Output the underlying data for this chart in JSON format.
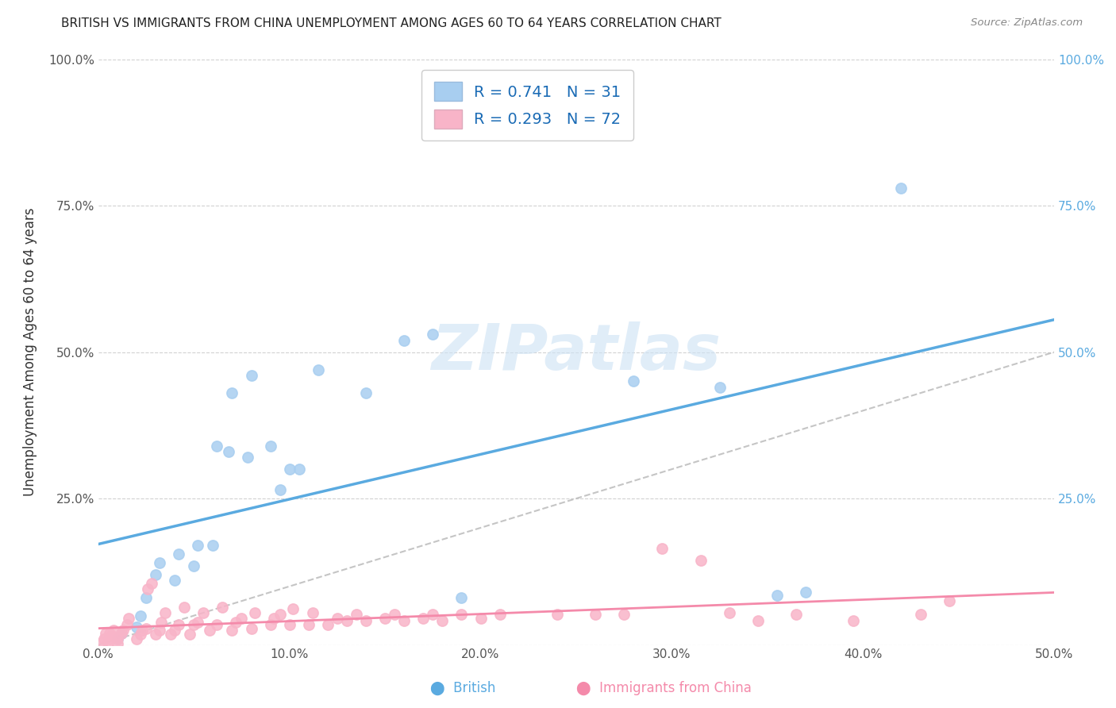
{
  "title": "BRITISH VS IMMIGRANTS FROM CHINA UNEMPLOYMENT AMONG AGES 60 TO 64 YEARS CORRELATION CHART",
  "source": "Source: ZipAtlas.com",
  "ylabel": "Unemployment Among Ages 60 to 64 years",
  "xlim": [
    0.0,
    50.0
  ],
  "ylim": [
    0.0,
    100.0
  ],
  "xticks": [
    0.0,
    10.0,
    20.0,
    30.0,
    40.0,
    50.0
  ],
  "yticks": [
    0.0,
    25.0,
    50.0,
    75.0,
    100.0
  ],
  "xticklabels": [
    "0.0%",
    "10.0%",
    "20.0%",
    "30.0%",
    "40.0%",
    "50.0%"
  ],
  "yticklabels_left": [
    "",
    "25.0%",
    "50.0%",
    "75.0%",
    "100.0%"
  ],
  "yticklabels_right": [
    "",
    "25.0%",
    "50.0%",
    "75.0%",
    "100.0%"
  ],
  "british_color": "#A8CEF0",
  "china_color": "#F8B4C8",
  "british_fill": "#A8CEF0",
  "china_fill": "#F8B4C8",
  "british_R": 0.741,
  "british_N": 31,
  "china_R": 0.293,
  "china_N": 72,
  "legend_color": "#1A6BB5",
  "watermark_color": "#D0E4F5",
  "diagonal_color": "#BBBBBB",
  "british_line_color": "#5AAAE0",
  "china_line_color": "#F48AAA",
  "right_tick_color": "#5AAAE0",
  "british_scatter": [
    [
      1.0,
      1.0
    ],
    [
      1.2,
      2.0
    ],
    [
      2.0,
      3.0
    ],
    [
      2.2,
      5.0
    ],
    [
      2.5,
      8.0
    ],
    [
      3.0,
      12.0
    ],
    [
      3.2,
      14.0
    ],
    [
      4.0,
      11.0
    ],
    [
      4.2,
      15.5
    ],
    [
      5.0,
      13.5
    ],
    [
      5.2,
      17.0
    ],
    [
      6.0,
      17.0
    ],
    [
      6.2,
      34.0
    ],
    [
      6.8,
      33.0
    ],
    [
      7.0,
      43.0
    ],
    [
      7.8,
      32.0
    ],
    [
      8.0,
      46.0
    ],
    [
      9.0,
      34.0
    ],
    [
      9.5,
      26.5
    ],
    [
      10.0,
      30.0
    ],
    [
      10.5,
      30.0
    ],
    [
      11.5,
      47.0
    ],
    [
      14.0,
      43.0
    ],
    [
      16.0,
      52.0
    ],
    [
      17.5,
      53.0
    ],
    [
      19.0,
      8.0
    ],
    [
      28.0,
      45.0
    ],
    [
      32.5,
      44.0
    ],
    [
      35.5,
      8.5
    ],
    [
      37.0,
      9.0
    ],
    [
      42.0,
      78.0
    ]
  ],
  "china_scatter": [
    [
      0.2,
      0.5
    ],
    [
      0.3,
      1.0
    ],
    [
      0.4,
      2.0
    ],
    [
      0.5,
      0.3
    ],
    [
      0.6,
      1.0
    ],
    [
      0.6,
      2.0
    ],
    [
      0.7,
      1.5
    ],
    [
      0.8,
      2.5
    ],
    [
      1.0,
      0.2
    ],
    [
      1.0,
      1.0
    ],
    [
      1.2,
      2.0
    ],
    [
      1.3,
      2.5
    ],
    [
      1.5,
      3.5
    ],
    [
      1.6,
      4.5
    ],
    [
      2.0,
      1.0
    ],
    [
      2.2,
      1.8
    ],
    [
      2.3,
      2.5
    ],
    [
      2.5,
      2.8
    ],
    [
      2.6,
      9.5
    ],
    [
      2.8,
      10.5
    ],
    [
      3.0,
      1.8
    ],
    [
      3.2,
      2.5
    ],
    [
      3.3,
      3.8
    ],
    [
      3.5,
      5.5
    ],
    [
      3.8,
      1.8
    ],
    [
      4.0,
      2.5
    ],
    [
      4.2,
      3.5
    ],
    [
      4.5,
      6.5
    ],
    [
      4.8,
      1.8
    ],
    [
      5.0,
      3.5
    ],
    [
      5.2,
      3.8
    ],
    [
      5.5,
      5.5
    ],
    [
      5.8,
      2.5
    ],
    [
      6.2,
      3.5
    ],
    [
      6.5,
      6.5
    ],
    [
      7.0,
      2.5
    ],
    [
      7.2,
      3.8
    ],
    [
      7.5,
      4.5
    ],
    [
      8.0,
      2.8
    ],
    [
      8.2,
      5.5
    ],
    [
      9.0,
      3.5
    ],
    [
      9.2,
      4.5
    ],
    [
      9.5,
      5.2
    ],
    [
      10.0,
      3.5
    ],
    [
      10.2,
      6.2
    ],
    [
      11.0,
      3.5
    ],
    [
      11.2,
      5.5
    ],
    [
      12.0,
      3.5
    ],
    [
      12.5,
      4.5
    ],
    [
      13.0,
      4.2
    ],
    [
      13.5,
      5.2
    ],
    [
      14.0,
      4.2
    ],
    [
      15.0,
      4.5
    ],
    [
      15.5,
      5.2
    ],
    [
      16.0,
      4.2
    ],
    [
      17.0,
      4.5
    ],
    [
      17.5,
      5.2
    ],
    [
      18.0,
      4.2
    ],
    [
      19.0,
      5.2
    ],
    [
      20.0,
      4.5
    ],
    [
      21.0,
      5.2
    ],
    [
      24.0,
      5.2
    ],
    [
      26.0,
      5.2
    ],
    [
      27.5,
      5.2
    ],
    [
      29.5,
      16.5
    ],
    [
      31.5,
      14.5
    ],
    [
      33.0,
      5.5
    ],
    [
      34.5,
      4.2
    ],
    [
      36.5,
      5.2
    ],
    [
      39.5,
      4.2
    ],
    [
      43.0,
      5.2
    ],
    [
      44.5,
      7.5
    ]
  ]
}
